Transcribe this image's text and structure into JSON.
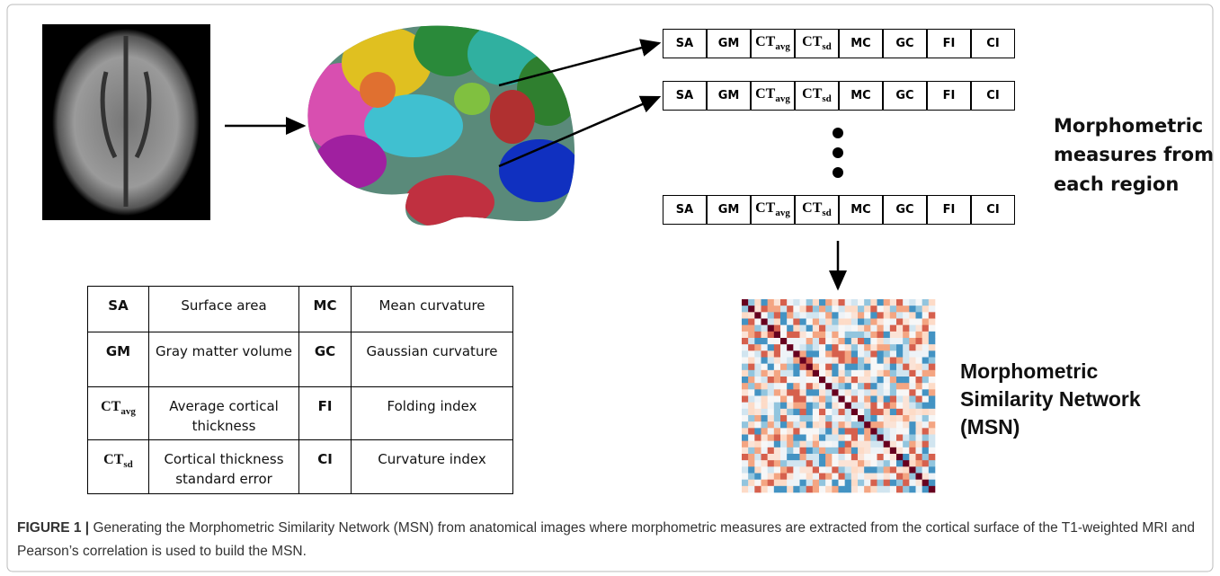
{
  "figure": {
    "feature_vectors": [
      [
        {
          "text": "SA"
        },
        {
          "text": "GM"
        },
        {
          "base": "CT",
          "sub": "avg"
        },
        {
          "base": "CT",
          "sub": "sd"
        },
        {
          "text": "MC"
        },
        {
          "text": "GC"
        },
        {
          "text": "FI"
        },
        {
          "text": "CI"
        }
      ],
      [
        {
          "text": "SA"
        },
        {
          "text": "GM"
        },
        {
          "base": "CT",
          "sub": "avg"
        },
        {
          "base": "CT",
          "sub": "sd"
        },
        {
          "text": "MC"
        },
        {
          "text": "GC"
        },
        {
          "text": "FI"
        },
        {
          "text": "CI"
        }
      ],
      [
        {
          "text": "SA"
        },
        {
          "text": "GM"
        },
        {
          "base": "CT",
          "sub": "avg"
        },
        {
          "base": "CT",
          "sub": "sd"
        },
        {
          "text": "MC"
        },
        {
          "text": "GC"
        },
        {
          "text": "FI"
        },
        {
          "text": "CI"
        }
      ]
    ],
    "measures_label": [
      "Morphometric",
      "measures from",
      "each region"
    ],
    "msn_label": [
      "Morphometric",
      "Similarity Network",
      "(MSN)"
    ],
    "legend_table": [
      [
        {
          "text": "SA"
        },
        "Surface area",
        {
          "text": "MC"
        },
        "Mean curvature"
      ],
      [
        {
          "text": "GM"
        },
        "Gray matter volume",
        {
          "text": "GC"
        },
        "Gaussian curvature"
      ],
      [
        {
          "base": "CT",
          "sub": "avg"
        },
        "Average cortical thickness",
        {
          "text": "FI"
        },
        "Folding index"
      ],
      [
        {
          "base": "CT",
          "sub": "sd"
        },
        "Cortical thickness standard error",
        {
          "text": "CI"
        },
        "Curvature index"
      ]
    ],
    "caption": {
      "label": "FIGURE 1 |",
      "text": "Generating the Morphometric Similarity Network (MSN) from anatomical images where morphometric measures are extracted from the cortical surface of the T1-weighted MRI and Pearson’s correlation is used to build the MSN."
    }
  }
}
